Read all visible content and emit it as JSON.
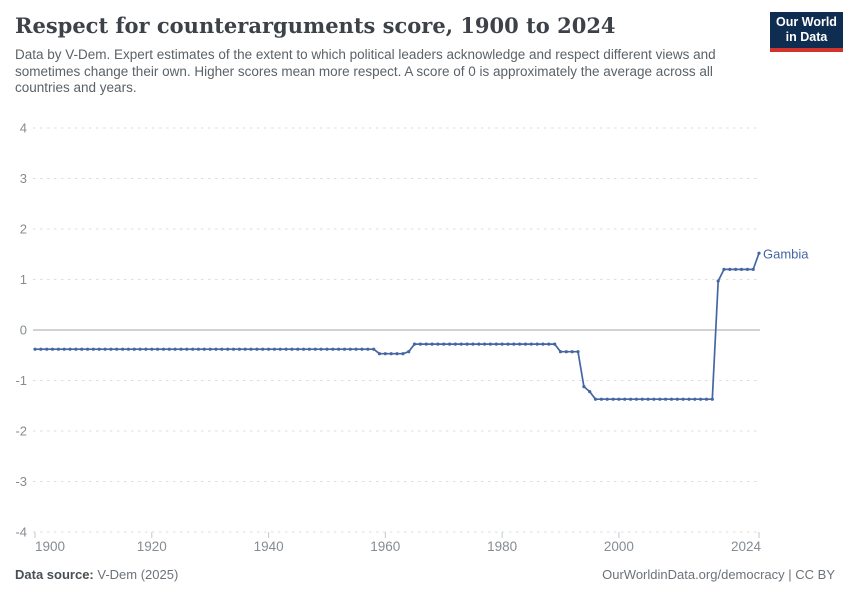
{
  "header": {
    "logo": {
      "line1": "Our World",
      "line2": "in Data"
    }
  },
  "footer": {
    "source_label": "Data source:",
    "source_value": " V-Dem (2025)",
    "credit": "OurWorldinData.org/democracy | CC BY"
  },
  "colors": {
    "line": "#4566a3",
    "gridline": "#dedede",
    "zero_line": "#a0a6ab",
    "tick": "#c3c8cc",
    "axis_text": "#858c92",
    "logo_navy": "#0e2d51",
    "logo_red": "#d0342c"
  },
  "chart_data": {
    "type": "line",
    "title": "Respect for counterarguments score, 1900 to 2024",
    "subtitle": "Data by V-Dem. Expert estimates of the extent to which political leaders acknowledge and respect different views and sometimes change their own. Higher scores mean more respect. A score of 0 is approximately the average across all countries and years.",
    "xlabel": "",
    "ylabel": "",
    "xlim": [
      1900,
      2024
    ],
    "ylim": [
      -4,
      4
    ],
    "yticks": [
      4,
      3,
      2,
      1,
      0,
      -1,
      -2,
      -3,
      -4
    ],
    "xticks": [
      1900,
      1920,
      1940,
      1960,
      1980,
      2000,
      2024
    ],
    "grid": "horizontal-dashed, solid zero line",
    "legend": "end-of-line entity label",
    "x_start": 1900,
    "x_step": 1,
    "series": [
      {
        "name": "Gambia",
        "values": [
          -0.38,
          -0.38,
          -0.38,
          -0.38,
          -0.38,
          -0.38,
          -0.38,
          -0.38,
          -0.38,
          -0.38,
          -0.38,
          -0.38,
          -0.38,
          -0.38,
          -0.38,
          -0.38,
          -0.38,
          -0.38,
          -0.38,
          -0.38,
          -0.38,
          -0.38,
          -0.38,
          -0.38,
          -0.38,
          -0.38,
          -0.38,
          -0.38,
          -0.38,
          -0.38,
          -0.38,
          -0.38,
          -0.38,
          -0.38,
          -0.38,
          -0.38,
          -0.38,
          -0.38,
          -0.38,
          -0.38,
          -0.38,
          -0.38,
          -0.38,
          -0.38,
          -0.38,
          -0.38,
          -0.38,
          -0.38,
          -0.38,
          -0.38,
          -0.38,
          -0.38,
          -0.38,
          -0.38,
          -0.38,
          -0.38,
          -0.38,
          -0.38,
          -0.38,
          -0.47,
          -0.47,
          -0.47,
          -0.47,
          -0.47,
          -0.43,
          -0.28,
          -0.28,
          -0.28,
          -0.28,
          -0.28,
          -0.28,
          -0.28,
          -0.28,
          -0.28,
          -0.28,
          -0.28,
          -0.28,
          -0.28,
          -0.28,
          -0.28,
          -0.28,
          -0.28,
          -0.28,
          -0.28,
          -0.28,
          -0.28,
          -0.28,
          -0.28,
          -0.28,
          -0.28,
          -0.43,
          -0.43,
          -0.43,
          -0.43,
          -1.12,
          -1.22,
          -1.37,
          -1.37,
          -1.37,
          -1.37,
          -1.37,
          -1.37,
          -1.37,
          -1.37,
          -1.37,
          -1.37,
          -1.37,
          -1.37,
          -1.37,
          -1.37,
          -1.37,
          -1.37,
          -1.37,
          -1.37,
          -1.37,
          -1.37,
          -1.37,
          0.97,
          1.2,
          1.2,
          1.2,
          1.2,
          1.2,
          1.2,
          1.52
        ]
      }
    ]
  }
}
